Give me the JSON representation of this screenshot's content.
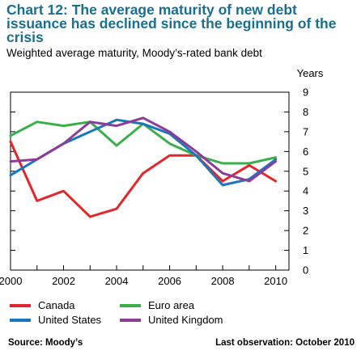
{
  "title": "Chart 12: The average maturity of new debt issuance has declined since the beginning of the crisis",
  "subtitle": "Weighted average maturity, Moody’s-rated bank debt",
  "source": "Source: Moody’s",
  "last_observation": "Last observation: October 2010",
  "chart_data": {
    "type": "line",
    "yunit": "Years",
    "ylim": [
      0,
      9
    ],
    "yticks": [
      0,
      1,
      2,
      3,
      4,
      5,
      6,
      7,
      8,
      9
    ],
    "xlim": [
      2000,
      2010.5
    ],
    "xticks": [
      2000,
      2002,
      2004,
      2006,
      2008,
      2010
    ],
    "legend_position": "bottom",
    "series": [
      {
        "name": "Canada",
        "color": "#e3262b",
        "x": [
          2000,
          2001,
          2002,
          2003,
          2004,
          2005,
          2006,
          2007,
          2008,
          2009,
          2010
        ],
        "y": [
          6.5,
          3.5,
          4.0,
          2.7,
          3.1,
          4.9,
          5.8,
          5.8,
          4.5,
          5.3,
          4.5
        ]
      },
      {
        "name": "Euro area",
        "color": "#3aae49",
        "x": [
          2000,
          2001,
          2002,
          2003,
          2004,
          2005,
          2006,
          2007,
          2008,
          2009,
          2010
        ],
        "y": [
          6.8,
          7.5,
          7.3,
          7.5,
          6.3,
          7.4,
          6.4,
          5.8,
          5.4,
          5.4,
          5.7
        ]
      },
      {
        "name": "United States",
        "color": "#1a76bd",
        "x": [
          2000,
          2001,
          2002,
          2003,
          2004,
          2005,
          2006,
          2007,
          2008,
          2009,
          2010
        ],
        "y": [
          4.8,
          5.6,
          6.4,
          7.0,
          7.6,
          7.4,
          6.9,
          5.8,
          4.3,
          4.6,
          5.6
        ]
      },
      {
        "name": "United Kingdom",
        "color": "#8d3c97",
        "x": [
          2000,
          2001,
          2002,
          2003,
          2004,
          2005,
          2006,
          2007,
          2008,
          2009,
          2010
        ],
        "y": [
          5.5,
          5.6,
          6.4,
          7.5,
          7.3,
          7.7,
          7.0,
          6.0,
          4.9,
          4.5,
          5.5
        ]
      }
    ]
  }
}
